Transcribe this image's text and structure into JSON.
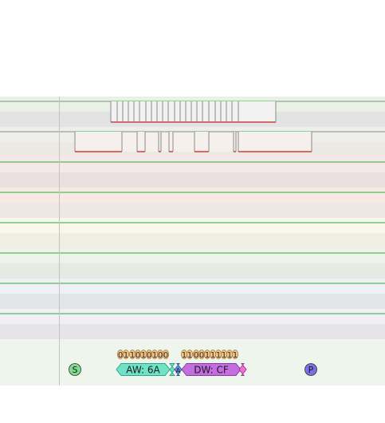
{
  "lane_colors": [
    {
      "name": "scl",
      "top": "#e9f0e6",
      "bottom": "#e3e3e3"
    },
    {
      "name": "sda",
      "top": "#eeeeea",
      "bottom": "#ece9e4"
    },
    {
      "name": "ch2",
      "top": "#f5e8e8",
      "bottom": "#eae0e0"
    },
    {
      "name": "ch3",
      "top": "#f7eae4",
      "bottom": "#eee8e2"
    },
    {
      "name": "ch4",
      "top": "#f8f7ea",
      "bottom": "#efeee2"
    },
    {
      "name": "ch5",
      "top": "#edf2ea",
      "bottom": "#e5ebe3"
    },
    {
      "name": "ch6",
      "top": "#eef0f4",
      "bottom": "#e3e4e8"
    },
    {
      "name": "ch7",
      "top": "#f0eff3",
      "bottom": "#e6e4e8"
    },
    {
      "name": "decoder",
      "top": "#eef5ec",
      "bottom": "#eef5ec"
    }
  ],
  "colors": {
    "lane_divider": "#2fae3a",
    "signal_high": "#8a8a8a",
    "signal_low": "#c21d1d",
    "active_fill": "#f2f2f2",
    "bit_fill": "#f4c58a",
    "bit_stroke": "#b07c38",
    "address_fill": "#6fe3c5",
    "address_stroke": "#2aa88a",
    "data_fill": "#c46de0",
    "data_stroke": "#8a3aa6",
    "start_fill": "#7fdc8f",
    "stop_fill": "#7b6fe8"
  },
  "decoder": {
    "start_label": "S",
    "stop_label": "P",
    "address_label": "AW: 6A",
    "ack_label": "A",
    "data_label": "DW: CF",
    "address_bits": [
      "0",
      "1",
      "1",
      "0",
      "1",
      "0",
      "1",
      "0"
    ],
    "data_bits": [
      "1",
      "1",
      "0",
      "0",
      "1",
      "1",
      "1",
      "1"
    ],
    "rw_bit": "0"
  }
}
